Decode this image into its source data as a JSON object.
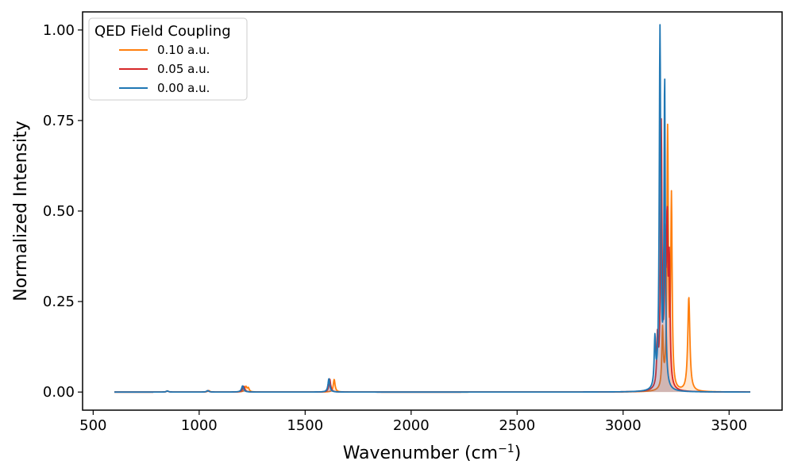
{
  "chart_data": {
    "type": "line",
    "title": "",
    "xlabel": "Wavenumber (cm",
    "xlabel_sup": "−1",
    "xlabel_suffix": ")",
    "ylabel": "Normalized Intensity",
    "xlim": [
      450,
      3750
    ],
    "ylim": [
      -0.05,
      1.05
    ],
    "x_ticks": [
      500,
      1000,
      1500,
      2000,
      2500,
      3000,
      3500
    ],
    "x_tick_labels": [
      "500",
      "1000",
      "1500",
      "2000",
      "2500",
      "3000",
      "3500"
    ],
    "y_ticks": [
      0.0,
      0.25,
      0.5,
      0.75,
      1.0
    ],
    "y_tick_labels": [
      "0.00",
      "0.25",
      "0.50",
      "0.75",
      "1.00"
    ],
    "grid": false,
    "legend_title": "QED Field Coupling",
    "legend_position": "top-left",
    "x_range": [
      600,
      3600
    ],
    "series": [
      {
        "name": "0.10 a.u.",
        "color": "#ff7f0e",
        "fill": true,
        "peaks": [
          {
            "x": 850,
            "y": 0.003,
            "w": 6
          },
          {
            "x": 1045,
            "y": 0.004,
            "w": 6
          },
          {
            "x": 1220,
            "y": 0.015,
            "w": 6
          },
          {
            "x": 1232,
            "y": 0.01,
            "w": 5
          },
          {
            "x": 1637,
            "y": 0.035,
            "w": 5
          },
          {
            "x": 3186,
            "y": 0.16,
            "w": 4
          },
          {
            "x": 3210,
            "y": 0.71,
            "w": 4
          },
          {
            "x": 3228,
            "y": 0.52,
            "w": 4
          },
          {
            "x": 3310,
            "y": 0.26,
            "w": 6
          }
        ]
      },
      {
        "name": "0.05 a.u.",
        "color": "#d62728",
        "fill": true,
        "peaks": [
          {
            "x": 850,
            "y": 0.003,
            "w": 6
          },
          {
            "x": 1042,
            "y": 0.004,
            "w": 6
          },
          {
            "x": 1210,
            "y": 0.016,
            "w": 6
          },
          {
            "x": 1616,
            "y": 0.036,
            "w": 5
          },
          {
            "x": 3162,
            "y": 0.13,
            "w": 4
          },
          {
            "x": 3180,
            "y": 0.72,
            "w": 4
          },
          {
            "x": 3198,
            "y": 0.36,
            "w": 4
          },
          {
            "x": 3208,
            "y": 0.41,
            "w": 4
          },
          {
            "x": 3218,
            "y": 0.32,
            "w": 4
          }
        ]
      },
      {
        "name": "0.00 a.u.",
        "color": "#1f77b4",
        "fill": true,
        "peaks": [
          {
            "x": 850,
            "y": 0.003,
            "w": 6
          },
          {
            "x": 1040,
            "y": 0.004,
            "w": 6
          },
          {
            "x": 1205,
            "y": 0.017,
            "w": 6
          },
          {
            "x": 1612,
            "y": 0.037,
            "w": 5
          },
          {
            "x": 3150,
            "y": 0.13,
            "w": 4
          },
          {
            "x": 3174,
            "y": 0.99,
            "w": 4
          },
          {
            "x": 3196,
            "y": 0.85,
            "w": 3.5
          }
        ]
      }
    ]
  }
}
